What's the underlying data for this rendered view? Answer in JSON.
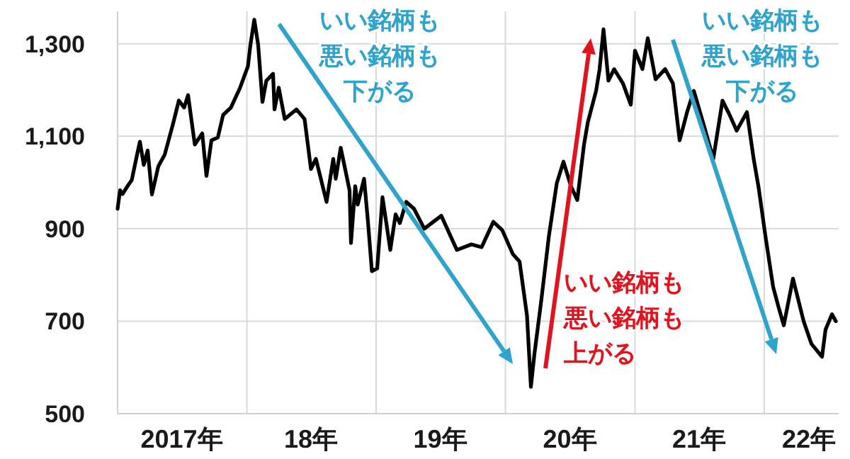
{
  "chart_data": {
    "type": "line",
    "x": [
      "2017-01-01",
      "2017-01-08",
      "2017-01-15",
      "2017-01-29",
      "2017-02-10",
      "2017-02-25",
      "2017-03-05",
      "2017-03-16",
      "2017-03-27",
      "2017-04-08",
      "2017-04-26",
      "2017-05-14",
      "2017-06-05",
      "2017-06-23",
      "2017-07-08",
      "2017-07-19",
      "2017-08-07",
      "2017-08-28",
      "2017-09-09",
      "2017-09-23",
      "2017-10-11",
      "2017-10-26",
      "2017-11-17",
      "2017-12-13",
      "2018-01-04",
      "2018-01-11",
      "2018-01-22",
      "2018-02-02",
      "2018-02-14",
      "2018-02-25",
      "2018-03-16",
      "2018-03-20",
      "2018-04-01",
      "2018-04-18",
      "2018-05-21",
      "2018-06-13",
      "2018-07-01",
      "2018-07-15",
      "2018-08-14",
      "2018-09-02",
      "2018-09-09",
      "2018-09-23",
      "2018-10-18",
      "2018-10-22",
      "2018-11-03",
      "2018-11-10",
      "2018-11-28",
      "2018-12-09",
      "2018-12-20",
      "2019-01-04",
      "2019-01-19",
      "2019-02-10",
      "2019-02-25",
      "2019-03-09",
      "2019-03-27",
      "2019-04-18",
      "2019-05-17",
      "2019-07-04",
      "2019-08-17",
      "2019-09-27",
      "2019-10-26",
      "2019-11-28",
      "2019-12-23",
      "2020-01-22",
      "2020-02-10",
      "2020-03-02",
      "2020-03-13",
      "2020-03-23",
      "2020-04-11",
      "2020-05-03",
      "2020-05-25",
      "2020-06-13",
      "2020-07-04",
      "2020-07-22",
      "2020-08-10",
      "2020-08-21",
      "2020-09-13",
      "2020-09-23",
      "2020-10-04",
      "2020-10-18",
      "2020-11-03",
      "2020-11-28",
      "2020-12-20",
      "2021-01-01",
      "2021-01-22",
      "2021-02-06",
      "2021-02-28",
      "2021-03-27",
      "2021-04-18",
      "2021-05-07",
      "2021-05-28",
      "2021-06-16",
      "2021-07-15",
      "2021-08-10",
      "2021-09-05",
      "2021-09-27",
      "2021-10-15",
      "2021-11-13",
      "2021-12-02",
      "2021-12-16",
      "2022-01-04",
      "2022-01-26",
      "2022-02-10",
      "2022-02-25",
      "2022-03-23",
      "2022-04-22",
      "2022-05-14",
      "2022-06-13",
      "2022-06-23",
      "2022-07-11",
      "2022-07-22"
    ],
    "series": [
      {
        "color": "#000000",
        "values": [
          943,
          983,
          975,
          992,
          1005,
          1060,
          1088,
          1038,
          1069,
          974,
          1035,
          1060,
          1122,
          1177,
          1162,
          1189,
          1082,
          1106,
          1014,
          1091,
          1097,
          1146,
          1162,
          1205,
          1251,
          1297,
          1352,
          1297,
          1174,
          1220,
          1235,
          1158,
          1205,
          1137,
          1158,
          1137,
          1029,
          1051,
          958,
          1051,
          1008,
          1075,
          983,
          869,
          992,
          952,
          1008,
          915,
          808,
          814,
          968,
          854,
          931,
          912,
          958,
          943,
          900,
          928,
          854,
          866,
          860,
          915,
          897,
          845,
          829,
          712,
          558,
          629,
          743,
          885,
          998,
          1045,
          992,
          962,
          1082,
          1131,
          1198,
          1245,
          1331,
          1220,
          1245,
          1214,
          1168,
          1285,
          1245,
          1312,
          1223,
          1245,
          1214,
          1091,
          1152,
          1198,
          1122,
          1051,
          1177,
          1143,
          1112,
          1152,
          1051,
          989,
          885,
          774,
          731,
          691,
          792,
          700,
          651,
          623,
          682,
          715,
          700
        ]
      }
    ],
    "xlim": [
      "2017-01-01",
      "2022-07-30"
    ],
    "xticks": [
      {
        "value": "2017-07-01",
        "label": "2017年"
      },
      {
        "value": "2018-01-01",
        "label": null
      },
      {
        "value": "2018-07-01",
        "label": "18年"
      },
      {
        "value": "2019-01-01",
        "label": null
      },
      {
        "value": "2019-07-01",
        "label": "19年"
      },
      {
        "value": "2020-01-01",
        "label": null
      },
      {
        "value": "2020-07-01",
        "label": "20年"
      },
      {
        "value": "2021-01-01",
        "label": null
      },
      {
        "value": "2021-07-01",
        "label": "21年"
      },
      {
        "value": "2022-01-01",
        "label": null
      },
      {
        "value": "2022-05-07",
        "label": "22年"
      }
    ],
    "ylim": [
      500,
      1370
    ],
    "yticks": [
      {
        "value": 500,
        "label": "500"
      },
      {
        "value": 700,
        "label": "700"
      },
      {
        "value": 900,
        "label": "900"
      },
      {
        "value": 1100,
        "label": "1,100"
      },
      {
        "value": 1300,
        "label": "1,300"
      }
    ],
    "grid": true,
    "annotations": [
      "いい銘柄も悪い銘柄も下がる",
      "いい銘柄も悪い銘柄も上がる",
      "いい銘柄も悪い銘柄も下がる"
    ]
  }
}
